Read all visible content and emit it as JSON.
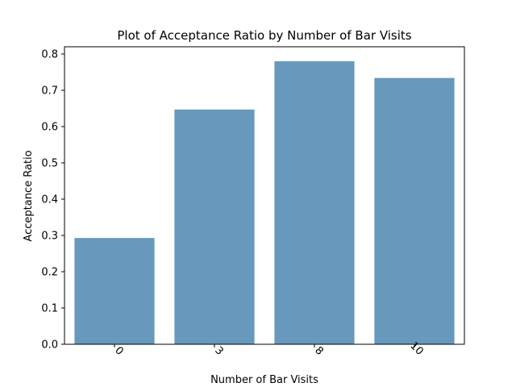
{
  "chart_data": {
    "type": "bar",
    "title": "Plot of Acceptance Ratio by Number of Bar Visits",
    "xlabel": "Number of Bar Visits",
    "ylabel": "Acceptance Ratio",
    "categories": [
      "0",
      "3",
      "8",
      "10"
    ],
    "values": [
      0.293,
      0.647,
      0.78,
      0.734
    ],
    "ylim": [
      0,
      0.82
    ],
    "yticks": [
      0.0,
      0.1,
      0.2,
      0.3,
      0.4,
      0.5,
      0.6,
      0.7,
      0.8
    ],
    "ytick_labels": [
      "0.0",
      "0.1",
      "0.2",
      "0.3",
      "0.4",
      "0.5",
      "0.6",
      "0.7",
      "0.8"
    ],
    "xtick_rotation_deg": 45,
    "grid": false,
    "legend": "none",
    "bar_color": "#6699bc"
  }
}
